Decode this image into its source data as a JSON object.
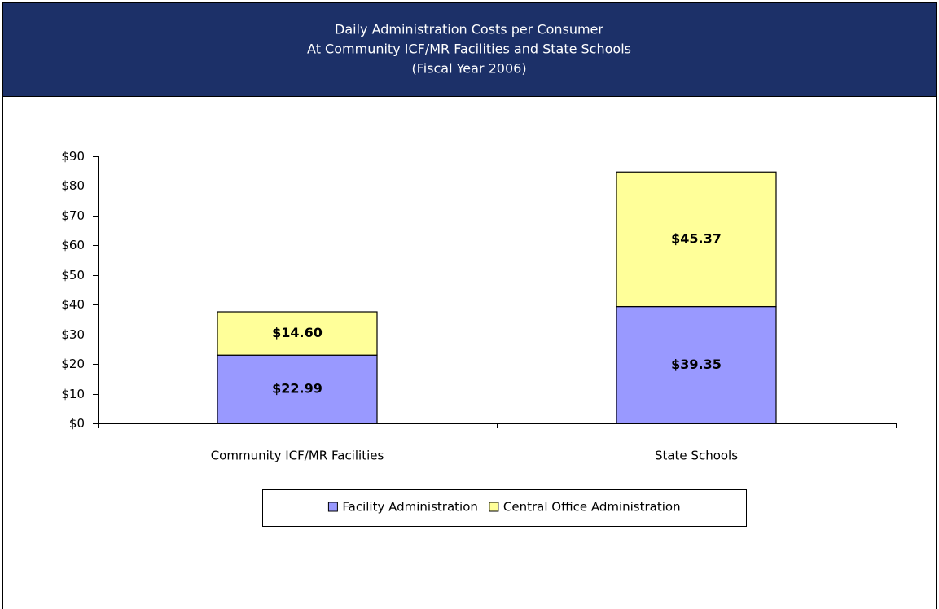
{
  "chart_data": {
    "type": "stacked_bar",
    "title": [
      "Daily Administration Costs per Consumer",
      "At Community ICF/MR Facilities and State Schools",
      "(Fiscal Year 2006)"
    ],
    "categories": [
      "Community ICF/MR Facilities",
      "State Schools"
    ],
    "series": [
      {
        "name": "Facility Administration",
        "color": "#9999ff",
        "values": [
          22.99,
          39.35
        ],
        "value_labels": [
          "$22.99",
          "$39.35"
        ]
      },
      {
        "name": "Central Office Administration",
        "color": "#ffff99",
        "values": [
          14.6,
          45.37
        ],
        "value_labels": [
          "$14.60",
          "$45.37"
        ]
      }
    ],
    "ylim": [
      0,
      90
    ],
    "yticks": [
      {
        "value": 0,
        "label": "$0"
      },
      {
        "value": 10,
        "label": "$10"
      },
      {
        "value": 20,
        "label": "$20"
      },
      {
        "value": 30,
        "label": "$30"
      },
      {
        "value": 40,
        "label": "$40"
      },
      {
        "value": 50,
        "label": "$50"
      },
      {
        "value": 60,
        "label": "$60"
      },
      {
        "value": 70,
        "label": "$70"
      },
      {
        "value": 80,
        "label": "$80"
      },
      {
        "value": 90,
        "label": "$90"
      }
    ],
    "legend": "bottom"
  }
}
